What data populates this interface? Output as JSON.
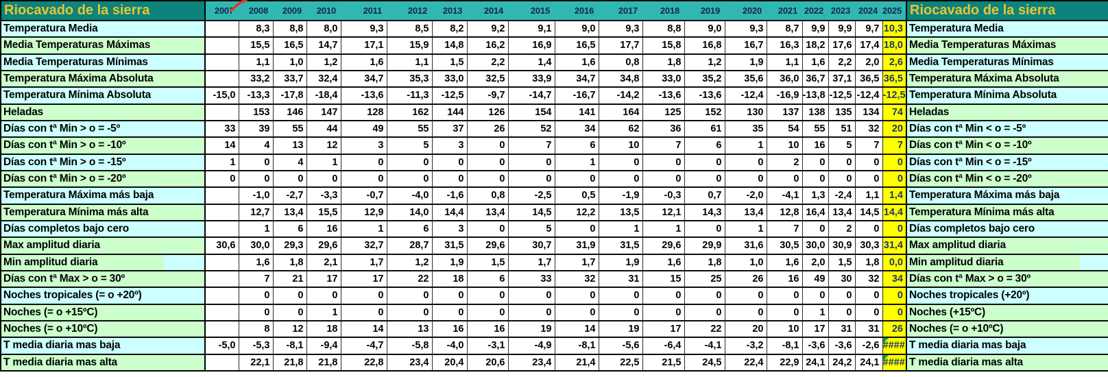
{
  "header": {
    "title_left": "Riocavado de la sierra",
    "title_right": "Riocavado de la sierra"
  },
  "years": [
    "2007",
    "2008",
    "2009",
    "2010",
    "2011",
    "2012",
    "2013",
    "2014",
    "2015",
    "2016",
    "2017",
    "2018",
    "2019",
    "2020",
    "2021",
    "2022",
    "2023",
    "2024",
    "2025"
  ],
  "highlight_year": "2025",
  "rows": [
    {
      "label_left": "Temperatura Media",
      "label_right": "Temperatura Media",
      "tint": "cyan",
      "values": [
        "",
        "8,3",
        "8,8",
        "8,0",
        "9,3",
        "8,5",
        "8,2",
        "9,2",
        "9,1",
        "9,0",
        "9,3",
        "8,8",
        "9,0",
        "9,3",
        "8,7",
        "9,9",
        "9,9",
        "9,7",
        "10,3"
      ]
    },
    {
      "label_left": "Media Temperaturas Máximas",
      "label_right": "Media Temperaturas Máximas",
      "tint": "green",
      "values": [
        "",
        "15,5",
        "16,5",
        "14,7",
        "17,1",
        "15,9",
        "14,8",
        "16,2",
        "16,9",
        "16,5",
        "17,7",
        "15,8",
        "16,8",
        "16,7",
        "16,3",
        "18,2",
        "17,6",
        "17,4",
        "18,0"
      ]
    },
    {
      "label_left": "Media Temperaturas Mínimas",
      "label_right": "Media Temperaturas Mínimas",
      "tint": "cyan",
      "values": [
        "",
        "1,1",
        "1,0",
        "1,2",
        "1,6",
        "1,1",
        "1,5",
        "2,2",
        "1,4",
        "1,6",
        "0,8",
        "1,8",
        "1,2",
        "1,9",
        "1,1",
        "1,6",
        "2,2",
        "2,0",
        "2,6"
      ]
    },
    {
      "label_left": "Temperatura Máxima Absoluta",
      "label_right": "Temperatura Máxima Absoluta",
      "tint": "green",
      "values": [
        "",
        "33,2",
        "33,7",
        "32,4",
        "34,7",
        "35,3",
        "33,0",
        "32,5",
        "33,9",
        "34,7",
        "34,8",
        "33,0",
        "35,2",
        "35,6",
        "36,0",
        "36,7",
        "37,1",
        "36,5",
        "36,5"
      ]
    },
    {
      "label_left": "Temperatura Mínima Absoluta",
      "label_right": "Temperatura Mínima Absoluta",
      "tint": "cyan",
      "values": [
        "-15,0",
        "-13,3",
        "-17,8",
        "-18,4",
        "-13,6",
        "-11,3",
        "-12,5",
        "-9,7",
        "-14,7",
        "-16,7",
        "-14,2",
        "-13,6",
        "-13,6",
        "-12,4",
        "-16,9",
        "-13,8",
        "-12,5",
        "-12,4",
        "-12,5"
      ]
    },
    {
      "label_left": "Heladas",
      "label_right": "Heladas",
      "tint": "green",
      "values": [
        "",
        "153",
        "146",
        "147",
        "128",
        "162",
        "144",
        "126",
        "154",
        "141",
        "164",
        "125",
        "152",
        "130",
        "137",
        "138",
        "135",
        "134",
        "74"
      ]
    },
    {
      "label_left": "Días con tª Min > o = -5º",
      "label_right": "Días con tª Min < o = -5º",
      "tint": "cyan",
      "values": [
        "33",
        "39",
        "55",
        "44",
        "49",
        "55",
        "37",
        "26",
        "52",
        "34",
        "62",
        "36",
        "61",
        "35",
        "54",
        "55",
        "51",
        "32",
        "20"
      ]
    },
    {
      "label_left": "Días con tª Min > o = -10º",
      "label_right": "Días con tª Min < o = -10º",
      "tint": "green",
      "values": [
        "14",
        "4",
        "13",
        "12",
        "3",
        "5",
        "3",
        "0",
        "7",
        "6",
        "10",
        "7",
        "6",
        "1",
        "10",
        "16",
        "5",
        "7",
        "7"
      ]
    },
    {
      "label_left": "Días con tª Min > o = -15º",
      "label_right": "Días con tª Min < o = -15º",
      "tint": "cyan",
      "values": [
        "1",
        "0",
        "4",
        "1",
        "0",
        "0",
        "0",
        "0",
        "0",
        "1",
        "0",
        "0",
        "0",
        "0",
        "2",
        "0",
        "0",
        "0",
        "0"
      ]
    },
    {
      "label_left": "Días con tª Min > o = -20º",
      "label_right": "Días con tª Min < o = -20º",
      "tint": "green",
      "values": [
        "0",
        "0",
        "0",
        "0",
        "0",
        "0",
        "0",
        "0",
        "0",
        "0",
        "0",
        "0",
        "0",
        "0",
        "0",
        "0",
        "0",
        "0",
        "0"
      ]
    },
    {
      "label_left": "Temperatura Máxima más baja",
      "label_right": "Temperatura Máxima más baja",
      "tint": "cyan",
      "values": [
        "",
        "-1,0",
        "-2,7",
        "-3,3",
        "-0,7",
        "-4,0",
        "-1,6",
        "0,8",
        "-2,5",
        "0,5",
        "-1,9",
        "-0,3",
        "0,7",
        "-2,0",
        "-4,1",
        "1,3",
        "-2,4",
        "1,1",
        "1,4"
      ]
    },
    {
      "label_left": "Temperatura Mínima más alta",
      "label_right": "Temperatura Mínima más alta",
      "tint": "green",
      "values": [
        "",
        "12,7",
        "13,4",
        "15,5",
        "12,9",
        "14,0",
        "14,4",
        "13,4",
        "14,5",
        "12,2",
        "13,5",
        "12,1",
        "14,3",
        "13,4",
        "12,8",
        "16,4",
        "13,4",
        "14,5",
        "14,4"
      ]
    },
    {
      "label_left": "Días completos bajo cero",
      "label_right": "Días completos bajo cero",
      "tint": "cyan",
      "values": [
        "",
        "1",
        "6",
        "16",
        "1",
        "6",
        "3",
        "0",
        "5",
        "0",
        "1",
        "1",
        "0",
        "1",
        "7",
        "0",
        "2",
        "0",
        "0"
      ]
    },
    {
      "label_left": "Max amplitud diaria",
      "label_right": "Max amplitud diaria",
      "tint": "green",
      "values": [
        "30,6",
        "30,0",
        "29,3",
        "29,6",
        "32,7",
        "28,7",
        "31,5",
        "29,6",
        "30,7",
        "31,9",
        "31,5",
        "29,6",
        "29,9",
        "31,6",
        "30,5",
        "30,0",
        "30,9",
        "30,3",
        "31,4"
      ]
    },
    {
      "label_left": "Min amplitud diaria",
      "label_right": "Min amplitud diaria",
      "tint": "green-split",
      "values": [
        "",
        "1,6",
        "1,8",
        "2,1",
        "1,7",
        "1,2",
        "1,9",
        "1,5",
        "1,7",
        "1,7",
        "1,9",
        "1,6",
        "1,8",
        "1,0",
        "1,6",
        "2,0",
        "1,5",
        "1,8",
        "0,0"
      ]
    },
    {
      "label_left": "Días con tª Max > o = 30º",
      "label_right": "Días con tª Max > o = 30º",
      "tint": "green",
      "values": [
        "",
        "7",
        "21",
        "17",
        "17",
        "22",
        "18",
        "6",
        "33",
        "32",
        "31",
        "15",
        "25",
        "26",
        "16",
        "49",
        "30",
        "32",
        "34"
      ]
    },
    {
      "label_left": "Noches tropicales  (= o +20º)",
      "label_right": "Noches tropicales  (+20º)",
      "tint": "cyan",
      "values": [
        "",
        "0",
        "0",
        "0",
        "0",
        "0",
        "0",
        "0",
        "0",
        "0",
        "0",
        "0",
        "0",
        "0",
        "0",
        "0",
        "0",
        "0",
        "0"
      ]
    },
    {
      "label_left": "Noches   (= o +15ºC)",
      "label_right": "Noches   (+15ºC)",
      "tint": "green",
      "values": [
        "",
        "0",
        "0",
        "1",
        "0",
        "0",
        "0",
        "0",
        "0",
        "0",
        "0",
        "0",
        "0",
        "0",
        "0",
        "1",
        "0",
        "0",
        "0"
      ]
    },
    {
      "label_left": "Noches   (= o +10ºC)",
      "label_right": "Noches   (= o +10ºC)",
      "tint": "green",
      "values": [
        "",
        "8",
        "12",
        "18",
        "14",
        "13",
        "16",
        "16",
        "19",
        "14",
        "19",
        "17",
        "22",
        "20",
        "10",
        "17",
        "31",
        "31",
        "26"
      ]
    },
    {
      "label_left": "T media diaria mas baja",
      "label_right": "T media diaria mas baja",
      "tint": "cyan",
      "values": [
        "-5,0",
        "-5,3",
        "-8,1",
        "-9,4",
        "-4,7",
        "-5,8",
        "-4,0",
        "-3,1",
        "-4,9",
        "-8,1",
        "-5,6",
        "-6,4",
        "-4,1",
        "-3,2",
        "-8,1",
        "-3,6",
        "-3,6",
        "-2,6",
        "####"
      ]
    },
    {
      "label_left": "T media diaria mas alta",
      "label_right": "T media diaria mas alta",
      "tint": "green",
      "values": [
        "",
        "22,1",
        "21,8",
        "21,8",
        "22,8",
        "23,4",
        "20,4",
        "20,6",
        "23,4",
        "21,4",
        "22,5",
        "21,5",
        "24,5",
        "22,4",
        "22,9",
        "24,1",
        "24,2",
        "24,1",
        "####"
      ]
    }
  ],
  "colors": {
    "header_teal": "#31b7b2",
    "header_dark_teal": "#0c837b",
    "title_gold": "#eac431",
    "row_cyan": "#ccffff",
    "row_green": "#ccffcc",
    "highlight_yellow": "#ffff00",
    "highlight_text_navy": "#1f3864",
    "error_flag_green": "#00a651",
    "annotation_red": "#e3342b"
  }
}
